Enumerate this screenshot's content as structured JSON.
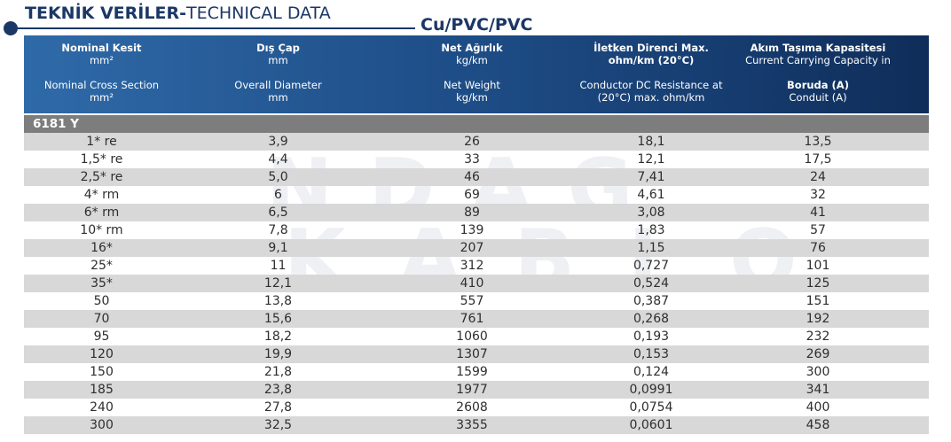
{
  "title": {
    "strong": "TEKNİK VERİLER-",
    "light": "TECHNICAL DATA"
  },
  "subtitle": "Cu/PVC/PVC",
  "watermark": {
    "line1": "NDAG",
    "line2": "KABLO"
  },
  "header": {
    "col1": {
      "tr_title": "Nominal Kesit",
      "tr_unit": "mm²",
      "en_title": "Nominal Cross Section",
      "en_unit": "mm²"
    },
    "col2": {
      "tr_title": "Dış Çap",
      "tr_unit": "mm",
      "en_title": "Overall Diameter",
      "en_unit": "mm"
    },
    "col3": {
      "tr_title": "Net Ağırlık",
      "tr_unit": "kg/km",
      "en_title": "Net Weight",
      "en_unit": "kg/km"
    },
    "col4": {
      "tr_title": "İletken Direnci Max.",
      "tr_unit": "ohm/km (20°C)",
      "en_title": "Conductor DC Resistance at",
      "en_unit": "(20°C) max. ohm/km"
    },
    "col5": {
      "tr_title": "Akım Taşıma Kapasitesi",
      "tr_unit": "Current Carrying Capacity in",
      "en_title": "Boruda (A)",
      "en_unit": "Conduit (A)"
    }
  },
  "group_label": "6181 Y",
  "rows": [
    {
      "section": "1* re",
      "diameter": "3,9",
      "weight": "26",
      "resistance": "18,1",
      "capacity": "13,5"
    },
    {
      "section": "1,5* re",
      "diameter": "4,4",
      "weight": "33",
      "resistance": "12,1",
      "capacity": "17,5"
    },
    {
      "section": "2,5* re",
      "diameter": "5,0",
      "weight": "46",
      "resistance": "7,41",
      "capacity": "24"
    },
    {
      "section": "4* rm",
      "diameter": "6",
      "weight": "69",
      "resistance": "4,61",
      "capacity": "32"
    },
    {
      "section": "6* rm",
      "diameter": "6,5",
      "weight": "89",
      "resistance": "3,08",
      "capacity": "41"
    },
    {
      "section": "10* rm",
      "diameter": "7,8",
      "weight": "139",
      "resistance": "1,83",
      "capacity": "57"
    },
    {
      "section": "16*",
      "diameter": "9,1",
      "weight": "207",
      "resistance": "1,15",
      "capacity": "76"
    },
    {
      "section": "25*",
      "diameter": "11",
      "weight": "312",
      "resistance": "0,727",
      "capacity": "101"
    },
    {
      "section": "35*",
      "diameter": "12,1",
      "weight": "410",
      "resistance": "0,524",
      "capacity": "125"
    },
    {
      "section": "50",
      "diameter": "13,8",
      "weight": "557",
      "resistance": "0,387",
      "capacity": "151"
    },
    {
      "section": "70",
      "diameter": "15,6",
      "weight": "761",
      "resistance": "0,268",
      "capacity": "192"
    },
    {
      "section": "95",
      "diameter": "18,2",
      "weight": "1060",
      "resistance": "0,193",
      "capacity": "232"
    },
    {
      "section": "120",
      "diameter": "19,9",
      "weight": "1307",
      "resistance": "0,153",
      "capacity": "269"
    },
    {
      "section": "150",
      "diameter": "21,8",
      "weight": "1599",
      "resistance": "0,124",
      "capacity": "300"
    },
    {
      "section": "185",
      "diameter": "23,8",
      "weight": "1977",
      "resistance": "0,0991",
      "capacity": "341"
    },
    {
      "section": "240",
      "diameter": "27,8",
      "weight": "2608",
      "resistance": "0,0754",
      "capacity": "400"
    },
    {
      "section": "300",
      "diameter": "32,5",
      "weight": "3355",
      "resistance": "0,0601",
      "capacity": "458"
    }
  ]
}
